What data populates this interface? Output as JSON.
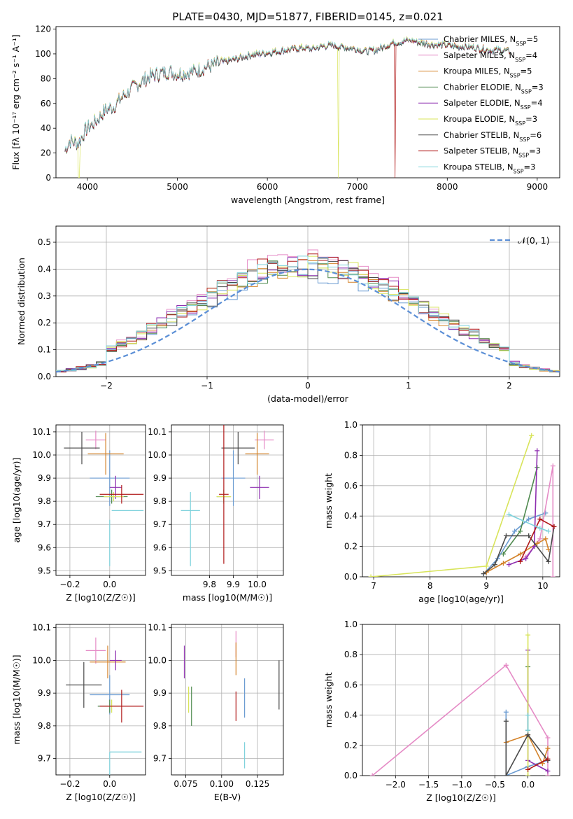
{
  "figure_title": "PLATE=0430, MJD=51877, FIBERID=0145, z=0.021",
  "colors": {
    "Chabrier MILES": "#6a9bd1",
    "Salpeter MILES": "#e58bc6",
    "Kroupa MILES": "#d4832a",
    "Chabrier ELODIE": "#4f8a4f",
    "Salpeter ELODIE": "#8e2fb0",
    "Kroupa ELODIE": "#d8e45a",
    "Chabrier STELIB": "#4a4a4a",
    "Salpeter STELIB": "#b01818",
    "Kroupa STELIB": "#7ed2dc",
    "normal": "#5b8fd6"
  },
  "chart_data": [
    {
      "id": "spectrum",
      "type": "line",
      "title": "PLATE=0430, MJD=51877, FIBERID=0145, z=0.021",
      "xlabel": "wavelength [Angstrom, rest frame]",
      "ylabel": "Flux [fλ 10⁻¹⁷ erg cm⁻² s⁻¹ A⁻¹]",
      "xlim": [
        3650,
        9250
      ],
      "ylim": [
        0,
        122
      ],
      "xticks": [
        4000,
        5000,
        6000,
        7000,
        8000,
        9000
      ],
      "yticks": [
        0,
        20,
        40,
        60,
        80,
        100,
        120
      ],
      "legend": "top-right",
      "continuum": [
        [
          3750,
          22
        ],
        [
          3800,
          30
        ],
        [
          3900,
          28
        ],
        [
          3950,
          35
        ],
        [
          4000,
          40
        ],
        [
          4100,
          46
        ],
        [
          4200,
          55
        ],
        [
          4300,
          58
        ],
        [
          4400,
          66
        ],
        [
          4500,
          72
        ],
        [
          4600,
          78
        ],
        [
          4700,
          82
        ],
        [
          4800,
          84
        ],
        [
          4900,
          86
        ],
        [
          5000,
          84
        ],
        [
          5100,
          85
        ],
        [
          5200,
          86
        ],
        [
          5300,
          89
        ],
        [
          5400,
          91
        ],
        [
          5500,
          93
        ],
        [
          5600,
          95
        ],
        [
          5700,
          97
        ],
        [
          5800,
          99
        ],
        [
          5900,
          100
        ],
        [
          6000,
          101
        ],
        [
          6100,
          102
        ],
        [
          6200,
          103
        ],
        [
          6300,
          104
        ],
        [
          6400,
          105
        ],
        [
          6500,
          104
        ],
        [
          6600,
          106
        ],
        [
          6700,
          107
        ],
        [
          6800,
          106
        ],
        [
          6900,
          105
        ],
        [
          7000,
          104
        ],
        [
          7100,
          102
        ],
        [
          7200,
          103
        ],
        [
          7300,
          106
        ],
        [
          7400,
          109
        ],
        [
          7500,
          110
        ],
        [
          7600,
          111
        ],
        [
          7700,
          109
        ],
        [
          7800,
          108
        ],
        [
          7900,
          107
        ],
        [
          8000,
          107
        ],
        [
          8100,
          106
        ],
        [
          8200,
          106
        ],
        [
          8300,
          105
        ],
        [
          8400,
          104
        ],
        [
          8500,
          103
        ],
        [
          8600,
          103
        ],
        [
          8700,
          102
        ]
      ],
      "series": [
        {
          "name": "Chabrier MILES, N_SSP=5",
          "drops": []
        },
        {
          "name": "Salpeter MILES, N_SSP=4",
          "drops": []
        },
        {
          "name": "Kroupa MILES, N_SSP=5",
          "drops": []
        },
        {
          "name": "Chabrier ELODIE, N_SSP=3",
          "drops": []
        },
        {
          "name": "Salpeter ELODIE, N_SSP=4",
          "drops": []
        },
        {
          "name": "Kroupa ELODIE, N_SSP=3",
          "drops": [
            3905,
            6790
          ]
        },
        {
          "name": "Chabrier STELIB, N_SSP=6",
          "drops": []
        },
        {
          "name": "Salpeter STELIB, N_SSP=3",
          "drops": [
            7420
          ]
        },
        {
          "name": "Kroupa STELIB, N_SSP=3",
          "drops": []
        }
      ]
    },
    {
      "id": "residuals",
      "type": "line",
      "xlabel": "(data-model)/error",
      "ylabel": "Normed distribution",
      "xlim": [
        -2.5,
        2.5
      ],
      "ylim": [
        0,
        0.56
      ],
      "xticks": [
        -2,
        -1,
        0,
        1,
        2
      ],
      "yticks": [
        0.0,
        0.1,
        0.2,
        0.3,
        0.4,
        0.5
      ],
      "bin_width": 0.1,
      "reference_label": "𝒩(0, 1)",
      "legend": "top-right",
      "series": [
        {
          "name": "Chabrier MILES",
          "scale": 1.0
        },
        {
          "name": "Salpeter MILES",
          "scale": 1.12
        },
        {
          "name": "Kroupa MILES",
          "scale": 1.03
        },
        {
          "name": "Chabrier ELODIE",
          "scale": 1.05
        },
        {
          "name": "Salpeter ELODIE",
          "scale": 1.08
        },
        {
          "name": "Kroupa ELODIE",
          "scale": 1.06
        },
        {
          "name": "Chabrier STELIB",
          "scale": 1.04
        },
        {
          "name": "Salpeter STELIB",
          "scale": 1.09
        },
        {
          "name": "Kroupa STELIB",
          "scale": 1.07
        }
      ]
    },
    {
      "id": "age-vs-Z",
      "type": "scatter",
      "xlabel": "Z [log10(Z/Z☉)]",
      "ylabel": "age  [log10(age/yr)]",
      "xlim": [
        -0.27,
        0.18
      ],
      "ylim": [
        9.48,
        10.13
      ],
      "xticks": [
        -0.2,
        0.0
      ],
      "yticks": [
        9.5,
        9.6,
        9.7,
        9.8,
        9.9,
        10.0,
        10.1
      ],
      "points": [
        {
          "name": "Chabrier MILES",
          "x": 0.0,
          "xerr": 0.1,
          "y": 9.9,
          "yerr": 0.12
        },
        {
          "name": "Salpeter MILES",
          "x": -0.07,
          "xerr": 0.05,
          "y": 10.065,
          "yerr": 0.04
        },
        {
          "name": "Kroupa MILES",
          "x": -0.02,
          "xerr": 0.09,
          "y": 10.005,
          "yerr": 0.09
        },
        {
          "name": "Chabrier ELODIE",
          "x": 0.01,
          "xerr": 0.08,
          "y": 9.82,
          "yerr": 0.03
        },
        {
          "name": "Salpeter ELODIE",
          "x": 0.03,
          "xerr": 0.03,
          "y": 9.86,
          "yerr": 0.05
        },
        {
          "name": "Kroupa ELODIE",
          "x": 0.02,
          "xerr": 0.05,
          "y": 9.82,
          "yerr": 0.02
        },
        {
          "name": "Chabrier STELIB",
          "x": -0.14,
          "xerr": 0.09,
          "y": 10.03,
          "yerr": 0.07
        },
        {
          "name": "Salpeter STELIB",
          "x": 0.06,
          "xerr": 0.11,
          "y": 9.83,
          "yerr": 0.04
        },
        {
          "name": "Kroupa STELIB",
          "x": 0.0,
          "xerr": 0.0,
          "y": 9.62,
          "yerr": 0.1
        },
        {
          "name": "Kroupa STELIB",
          "x": 0.09,
          "xerr": 0.08,
          "y": 9.76,
          "yerr": 0.0
        }
      ]
    },
    {
      "id": "age-vs-mass",
      "type": "scatter",
      "xlabel": "mass [log10(M/M☉)]",
      "ylabel": "",
      "xlim": [
        9.64,
        10.11
      ],
      "ylim": [
        9.48,
        10.13
      ],
      "xticks": [
        9.8,
        9.9,
        10.0
      ],
      "yticks": [
        9.5,
        9.6,
        9.7,
        9.8,
        9.9,
        10.0,
        10.1
      ],
      "points": [
        {
          "name": "Chabrier MILES",
          "x": 9.9,
          "xerr": 0.05,
          "y": 9.9,
          "yerr": 0.12
        },
        {
          "name": "Salpeter MILES",
          "x": 10.03,
          "xerr": 0.04,
          "y": 10.065,
          "yerr": 0.04
        },
        {
          "name": "Kroupa MILES",
          "x": 10.0,
          "xerr": 0.05,
          "y": 10.005,
          "yerr": 0.09
        },
        {
          "name": "Chabrier ELODIE",
          "x": 9.86,
          "xerr": 0.03,
          "y": 9.82,
          "yerr": 0.03
        },
        {
          "name": "Salpeter ELODIE",
          "x": 10.01,
          "xerr": 0.04,
          "y": 9.86,
          "yerr": 0.05
        },
        {
          "name": "Kroupa ELODIE",
          "x": 9.86,
          "xerr": 0.03,
          "y": 9.82,
          "yerr": 0.02
        },
        {
          "name": "Chabrier STELIB",
          "x": 9.92,
          "xerr": 0.07,
          "y": 10.03,
          "yerr": 0.07
        },
        {
          "name": "Salpeter STELIB",
          "x": 9.86,
          "xerr": 0.02,
          "y": 9.83,
          "yerr": 0.3
        },
        {
          "name": "Kroupa STELIB",
          "x": 9.72,
          "xerr": 0.04,
          "y": 9.76,
          "yerr": 0.0
        },
        {
          "name": "Kroupa STELIB",
          "x": 9.72,
          "xerr": 0.0,
          "y": 9.68,
          "yerr": 0.16
        }
      ]
    },
    {
      "id": "mass-weight-vs-age",
      "type": "line",
      "xlabel": "age  [log10(age/yr)]",
      "ylabel": "mass weight",
      "xlim": [
        6.8,
        10.3
      ],
      "ylim": [
        0,
        1.0
      ],
      "xticks": [
        7,
        8,
        9,
        10
      ],
      "yticks": [
        0.0,
        0.2,
        0.4,
        0.6,
        0.8,
        1.0
      ],
      "series": [
        {
          "name": "Chabrier MILES",
          "x": [
            8.95,
            9.2,
            9.5,
            9.75,
            10.05
          ],
          "y": [
            0.02,
            0.12,
            0.3,
            0.38,
            0.42
          ]
        },
        {
          "name": "Salpeter MILES",
          "x": [
            9.7,
            9.95,
            10.18,
            10.18
          ],
          "y": [
            0.13,
            0.25,
            0.73,
            0.0
          ]
        },
        {
          "name": "Kroupa MILES",
          "x": [
            9.0,
            9.3,
            9.6,
            9.9,
            10.05,
            10.1
          ],
          "y": [
            0.03,
            0.09,
            0.15,
            0.22,
            0.25,
            0.18
          ]
        },
        {
          "name": "Chabrier ELODIE",
          "x": [
            9.3,
            9.6,
            9.9
          ],
          "y": [
            0.15,
            0.3,
            0.72
          ]
        },
        {
          "name": "Salpeter ELODIE",
          "x": [
            9.4,
            9.7,
            9.85,
            9.9
          ],
          "y": [
            0.08,
            0.12,
            0.2,
            0.83
          ]
        },
        {
          "name": "Kroupa ELODIE",
          "x": [
            6.95,
            9.0,
            9.8
          ],
          "y": [
            0.0,
            0.07,
            0.93
          ]
        },
        {
          "name": "Chabrier STELIB",
          "x": [
            8.95,
            9.15,
            9.35,
            9.75,
            10.1,
            10.2
          ],
          "y": [
            0.02,
            0.08,
            0.27,
            0.27,
            0.1,
            0.33
          ]
        },
        {
          "name": "Salpeter STELIB",
          "x": [
            9.6,
            9.95,
            10.2
          ],
          "y": [
            0.1,
            0.38,
            0.33
          ]
        },
        {
          "name": "Kroupa STELIB",
          "x": [
            9.4,
            9.95,
            10.1
          ],
          "y": [
            0.41,
            0.32,
            0.3
          ]
        }
      ]
    },
    {
      "id": "mass-vs-Z",
      "type": "scatter",
      "xlabel": "Z [log10(Z/Z☉)]",
      "ylabel": "mass [log10(M/M☉)]",
      "xlim": [
        -0.27,
        0.18
      ],
      "ylim": [
        9.65,
        10.11
      ],
      "xticks": [
        -0.2,
        0.0
      ],
      "yticks": [
        9.7,
        9.8,
        9.9,
        10.0,
        10.1
      ],
      "points": [
        {
          "name": "Chabrier MILES",
          "x": 0.0,
          "xerr": 0.1,
          "y": 9.895,
          "yerr": 0.06
        },
        {
          "name": "Salpeter MILES",
          "x": -0.07,
          "xerr": 0.05,
          "y": 10.03,
          "yerr": 0.04
        },
        {
          "name": "Kroupa MILES",
          "x": -0.01,
          "xerr": 0.09,
          "y": 9.995,
          "yerr": 0.05
        },
        {
          "name": "Chabrier ELODIE",
          "x": 0.0,
          "xerr": 0.06,
          "y": 9.86,
          "yerr": 0.02
        },
        {
          "name": "Salpeter ELODIE",
          "x": 0.03,
          "xerr": 0.03,
          "y": 10.0,
          "yerr": 0.03
        },
        {
          "name": "Kroupa ELODIE",
          "x": 0.01,
          "xerr": 0.04,
          "y": 9.86,
          "yerr": 0.02
        },
        {
          "name": "Chabrier STELIB",
          "x": -0.13,
          "xerr": 0.09,
          "y": 9.925,
          "yerr": 0.07
        },
        {
          "name": "Salpeter STELIB",
          "x": 0.06,
          "xerr": 0.11,
          "y": 9.86,
          "yerr": 0.05
        },
        {
          "name": "Kroupa STELIB",
          "x": 0.08,
          "xerr": 0.08,
          "y": 9.72,
          "yerr": 0.0
        },
        {
          "name": "Kroupa STELIB",
          "x": 0.0,
          "xerr": 0.0,
          "y": 9.68,
          "yerr": 0.04
        }
      ]
    },
    {
      "id": "mass-vs-EBV",
      "type": "scatter",
      "xlabel": "E(B-V)",
      "ylabel": "",
      "xlim": [
        0.065,
        0.143
      ],
      "ylim": [
        9.65,
        10.11
      ],
      "xticks": [
        0.075,
        0.1,
        0.125
      ],
      "xticklabels": [
        "0.075",
        "0.100",
        "0.125"
      ],
      "yticks": [
        9.7,
        9.8,
        9.9,
        10.0,
        10.1
      ],
      "points": [
        {
          "name": "Chabrier MILES",
          "x": 0.116,
          "xerr": 0,
          "y": 9.885,
          "yerr": 0.06
        },
        {
          "name": "Salpeter MILES",
          "x": 0.11,
          "xerr": 0,
          "y": 10.05,
          "yerr": 0.04
        },
        {
          "name": "Kroupa MILES",
          "x": 0.11,
          "xerr": 0,
          "y": 10.005,
          "yerr": 0.05
        },
        {
          "name": "Chabrier ELODIE",
          "x": 0.079,
          "xerr": 0,
          "y": 9.86,
          "yerr": 0.06
        },
        {
          "name": "Salpeter ELODIE",
          "x": 0.074,
          "xerr": 0,
          "y": 9.995,
          "yerr": 0.05
        },
        {
          "name": "Kroupa ELODIE",
          "x": 0.077,
          "xerr": 0,
          "y": 9.88,
          "yerr": 0.04
        },
        {
          "name": "Chabrier STELIB",
          "x": 0.14,
          "xerr": 0,
          "y": 9.925,
          "yerr": 0.075
        },
        {
          "name": "Salpeter STELIB",
          "x": 0.11,
          "xerr": 0,
          "y": 9.86,
          "yerr": 0.045
        },
        {
          "name": "Kroupa STELIB",
          "x": 0.116,
          "xerr": 0,
          "y": 9.71,
          "yerr": 0.04
        }
      ]
    },
    {
      "id": "mass-weight-vs-Z",
      "type": "line",
      "xlabel": "Z [log10(Z/Z☉)]",
      "ylabel": "mass weight",
      "xlim": [
        -2.5,
        0.48
      ],
      "ylim": [
        0,
        1.0
      ],
      "xticks": [
        -2.0,
        -1.5,
        -1.0,
        -0.5,
        0.0
      ],
      "yticks": [
        0.0,
        0.2,
        0.4,
        0.6,
        0.8,
        1.0
      ],
      "series": [
        {
          "name": "Chabrier MILES",
          "x": [
            -0.33,
            -0.33,
            0.0,
            0.3
          ],
          "y": [
            0.42,
            0.0,
            0.06,
            0.1
          ]
        },
        {
          "name": "Salpeter MILES",
          "x": [
            -2.35,
            -0.33,
            0.3,
            0.3
          ],
          "y": [
            0.0,
            0.73,
            0.25,
            0.0
          ]
        },
        {
          "name": "Kroupa MILES",
          "x": [
            -0.33,
            0.0,
            0.22,
            0.3
          ],
          "y": [
            0.22,
            0.27,
            0.08,
            0.18
          ]
        },
        {
          "name": "Chabrier ELODIE",
          "x": [
            0.0,
            0.0
          ],
          "y": [
            0.3,
            0.72
          ]
        },
        {
          "name": "Salpeter ELODIE",
          "x": [
            0.0,
            0.0,
            0.3
          ],
          "y": [
            0.83,
            0.1,
            0.03
          ]
        },
        {
          "name": "Kroupa ELODIE",
          "x": [
            0.0,
            0.0
          ],
          "y": [
            0.0,
            0.93
          ]
        },
        {
          "name": "Chabrier STELIB",
          "x": [
            -0.33,
            -0.33,
            0.0,
            0.3
          ],
          "y": [
            0.36,
            0.0,
            0.27,
            0.1
          ]
        },
        {
          "name": "Salpeter STELIB",
          "x": [
            0.0,
            0.3
          ],
          "y": [
            0.04,
            0.11
          ]
        },
        {
          "name": "Kroupa STELIB",
          "x": [
            0.0,
            0.0
          ],
          "y": [
            0.3,
            0.4
          ]
        }
      ]
    }
  ]
}
